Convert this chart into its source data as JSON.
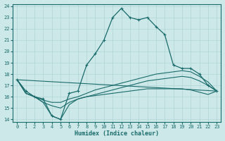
{
  "xlabel": "Humidex (Indice chaleur)",
  "bg_color": "#cce8e8",
  "line_color": "#1a6b6b",
  "grid_color": "#b0d4d4",
  "xlim": [
    -0.5,
    23.5
  ],
  "ylim": [
    13.8,
    24.2
  ],
  "yticks": [
    14,
    15,
    16,
    17,
    18,
    19,
    20,
    21,
    22,
    23,
    24
  ],
  "xticks": [
    0,
    1,
    2,
    3,
    4,
    5,
    6,
    7,
    8,
    9,
    10,
    11,
    12,
    13,
    14,
    15,
    16,
    17,
    18,
    19,
    20,
    21,
    22,
    23
  ],
  "line1_x": [
    0,
    1,
    2,
    3,
    4,
    5,
    6,
    7,
    8,
    9,
    10,
    11,
    12,
    13,
    14,
    15,
    16,
    17,
    18,
    19,
    20,
    21,
    22,
    23
  ],
  "line1_y": [
    17.5,
    16.5,
    16.0,
    15.8,
    14.3,
    14.0,
    16.3,
    16.5,
    18.8,
    19.8,
    21.0,
    23.0,
    23.8,
    23.0,
    22.8,
    23.0,
    22.2,
    21.5,
    18.8,
    18.5,
    18.5,
    18.0,
    17.0,
    16.5
  ],
  "line2_x": [
    0,
    23
  ],
  "line2_y": [
    17.5,
    16.5
  ],
  "line3_x": [
    0,
    1,
    2,
    3,
    4,
    5,
    6,
    7,
    8,
    9,
    10,
    11,
    12,
    13,
    14,
    15,
    16,
    17,
    18,
    19,
    20,
    21,
    22,
    23
  ],
  "line3_y": [
    17.5,
    16.3,
    16.0,
    15.7,
    15.5,
    15.5,
    15.8,
    16.0,
    16.3,
    16.6,
    16.8,
    17.0,
    17.2,
    17.4,
    17.6,
    17.8,
    18.0,
    18.1,
    18.2,
    18.3,
    18.2,
    17.8,
    17.3,
    16.5
  ],
  "line4_x": [
    0,
    1,
    2,
    3,
    4,
    5,
    6,
    7,
    8,
    9,
    10,
    11,
    12,
    13,
    14,
    15,
    16,
    17,
    18,
    19,
    20,
    21,
    22,
    23
  ],
  "line4_y": [
    17.5,
    16.3,
    16.0,
    15.5,
    15.2,
    15.0,
    15.5,
    15.8,
    16.0,
    16.2,
    16.4,
    16.6,
    16.8,
    17.0,
    17.2,
    17.4,
    17.5,
    17.6,
    17.7,
    17.8,
    17.7,
    17.4,
    17.0,
    16.5
  ],
  "line5_x": [
    0,
    1,
    2,
    3,
    4,
    5,
    6,
    7,
    8,
    9,
    10,
    11,
    12,
    13,
    14,
    15,
    16,
    17,
    18,
    19,
    20,
    21,
    22,
    23
  ],
  "line5_y": [
    17.5,
    16.3,
    16.0,
    15.5,
    14.3,
    14.0,
    15.3,
    15.8,
    16.0,
    16.1,
    16.2,
    16.3,
    16.4,
    16.5,
    16.6,
    16.7,
    16.7,
    16.7,
    16.7,
    16.7,
    16.6,
    16.4,
    16.2,
    16.5
  ]
}
